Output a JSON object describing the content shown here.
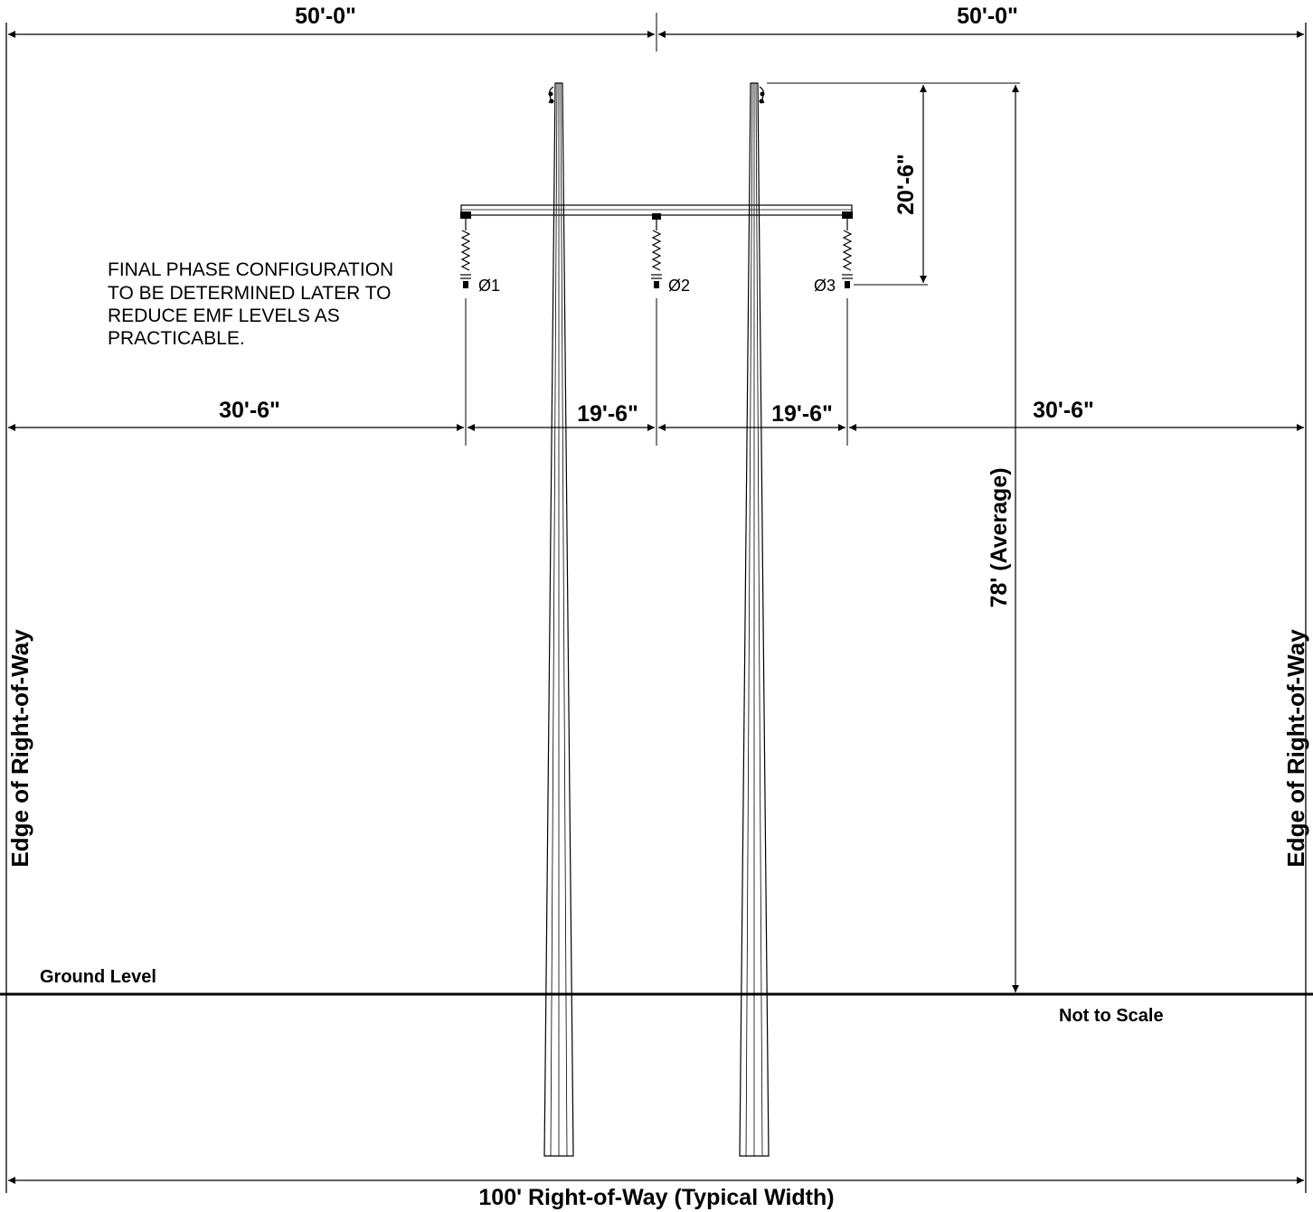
{
  "dimensions": {
    "top_left": "50'-0\"",
    "top_right": "50'-0\"",
    "phase_left": "30'-6\"",
    "phase_center_left": "19'-6\"",
    "phase_center_right": "19'-6\"",
    "phase_right": "30'-6\"",
    "conductor_drop": "20'-6\"",
    "pole_height": "78' (Average)",
    "row_width": "100' Right-of-Way (Typical Width)"
  },
  "phases": {
    "p1": "Ø1",
    "p2": "Ø2",
    "p3": "Ø3"
  },
  "note": {
    "line1": "FINAL PHASE CONFIGURATION",
    "line2": "TO BE DETERMINED LATER TO",
    "line3": "REDUCE EMF LEVELS AS",
    "line4": "PRACTICABLE."
  },
  "labels": {
    "edge_left": "Edge of Right-of-Way",
    "edge_right": "Edge of Right-of-Way",
    "ground": "Ground Level",
    "scale": "Not to Scale"
  }
}
